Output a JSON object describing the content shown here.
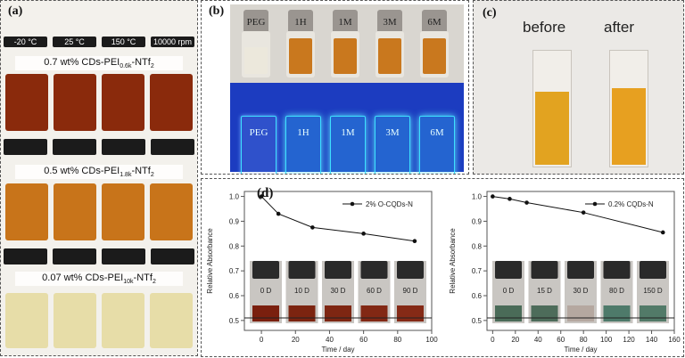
{
  "panel_a": {
    "label": "(a)",
    "conditions": [
      "-20 °C",
      "25 °C",
      "150 °C",
      "10000 rpm"
    ],
    "rows": [
      {
        "prefix": "0.7 wt% CDs-PEI",
        "sub": "0.6k",
        "suffix": "-NTf",
        "sub2": "2",
        "color": "#8a2a0c"
      },
      {
        "prefix": "0.5 wt% CDs-PEI",
        "sub": "1.8k",
        "suffix": "-NTf",
        "sub2": "2",
        "color": "#c8741a"
      },
      {
        "prefix": "0.07 wt% CDs-PEI",
        "sub": "10k",
        "suffix": "-NTf",
        "sub2": "2",
        "color": "#e7dda8"
      }
    ]
  },
  "panel_b": {
    "label": "(b)",
    "vials": [
      "PEG",
      "1H",
      "1M",
      "3M",
      "6M"
    ]
  },
  "panel_c": {
    "label": "(c)",
    "before": "before",
    "after": "after"
  },
  "panel_d": {
    "label": "(d)",
    "x_title": "Time / day",
    "y_title": "Relative  Absorbance"
  },
  "chart_data": [
    {
      "type": "line",
      "title": "",
      "series": [
        {
          "name": "2% O-CQDs-N",
          "x": [
            0,
            10,
            30,
            60,
            90
          ],
          "values": [
            1.0,
            0.93,
            0.875,
            0.85,
            0.82
          ]
        }
      ],
      "xlabel": "Time / day",
      "ylabel": "Relative  Absorbance",
      "xlim": [
        -10,
        100
      ],
      "ylim": [
        0.46,
        1.02
      ],
      "xticks": [
        "0",
        "20",
        "40",
        "60",
        "80",
        "100"
      ],
      "yticks": [
        "0.5",
        "0.6",
        "0.7",
        "0.8",
        "0.9",
        "1.0"
      ],
      "vial_labels": [
        "0 D",
        "10 D",
        "30 D",
        "60 D",
        "90 D"
      ],
      "legend": "top-right"
    },
    {
      "type": "line",
      "title": "",
      "series": [
        {
          "name": "0.2% CQDs-N",
          "x": [
            0,
            15,
            30,
            80,
            150
          ],
          "values": [
            1.0,
            0.99,
            0.975,
            0.935,
            0.855
          ]
        }
      ],
      "xlabel": "Time / day",
      "ylabel": "Relative Absorbance",
      "xlim": [
        -5,
        160
      ],
      "ylim": [
        0.46,
        1.02
      ],
      "xticks": [
        "0",
        "20",
        "40",
        "60",
        "80",
        "100",
        "120",
        "140",
        "160"
      ],
      "yticks": [
        "0.5",
        "0.6",
        "0.7",
        "0.8",
        "0.9",
        "1.0"
      ],
      "vial_labels": [
        "0 D",
        "15 D",
        "30 D",
        "80 D",
        "150 D"
      ],
      "legend": "top-right"
    }
  ]
}
